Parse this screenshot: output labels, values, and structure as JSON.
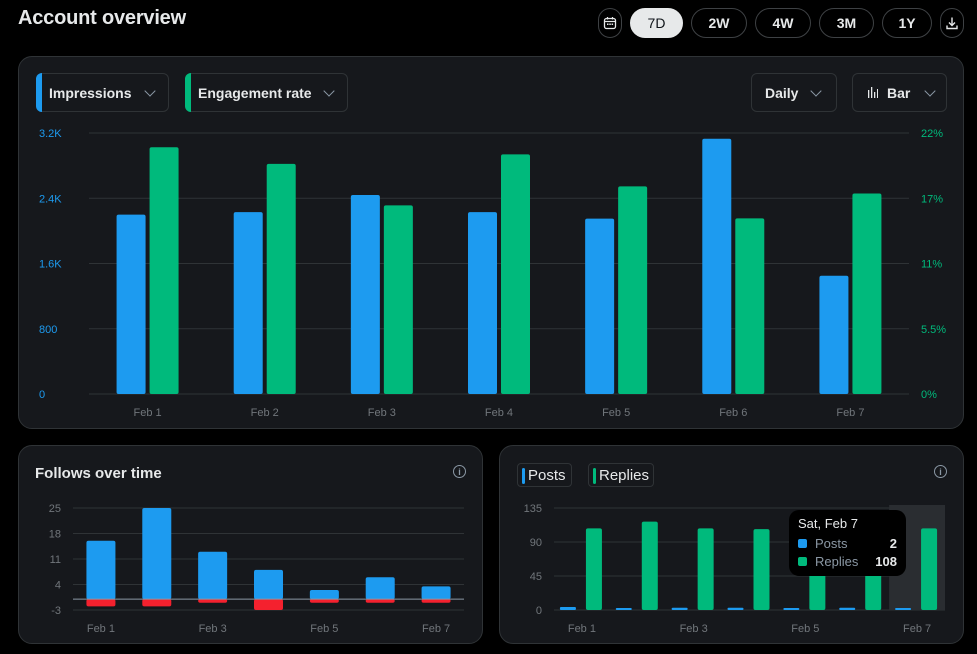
{
  "page": {
    "title": "Account overview"
  },
  "toolbar": {
    "ranges": [
      "7D",
      "2W",
      "4W",
      "3M",
      "1Y"
    ],
    "active_range": "7D"
  },
  "main_chart": {
    "metric_left": "Impressions",
    "metric_right": "Engagement rate",
    "interval": "Daily",
    "chart_type_label": "Bar",
    "colors": {
      "left": "#1d9bf0",
      "right": "#00ba7c"
    }
  },
  "follows_card": {
    "title": "Follows over time"
  },
  "posts_card": {
    "legend": [
      "Posts",
      "Replies"
    ],
    "tooltip": {
      "date": "Sat, Feb 7",
      "rows": [
        {
          "label": "Posts",
          "value": "2"
        },
        {
          "label": "Replies",
          "value": "108"
        }
      ]
    }
  },
  "chart_data": [
    {
      "type": "bar",
      "categories": [
        "Feb 1",
        "Feb 2",
        "Feb 3",
        "Feb 4",
        "Feb 5",
        "Feb 6",
        "Feb 7"
      ],
      "series": [
        {
          "name": "Impressions",
          "axis": "left",
          "values": [
            2200,
            2230,
            2440,
            2230,
            2150,
            3130,
            1450
          ]
        },
        {
          "name": "Engagement rate",
          "axis": "right",
          "values": [
            20.8,
            19.4,
            15.9,
            20.2,
            17.5,
            14.8,
            16.9
          ]
        }
      ],
      "y_left": {
        "ticks": [
          "0",
          "800",
          "1.6K",
          "2.4K",
          "3.2K"
        ],
        "ylim": [
          0,
          3200
        ]
      },
      "y_right": {
        "ticks": [
          "0%",
          "5.5%",
          "11%",
          "17%",
          "22%"
        ],
        "ylim": [
          0,
          22
        ]
      },
      "grid": true
    },
    {
      "type": "bar",
      "categories": [
        "Feb 1",
        "Feb 2",
        "Feb 3",
        "Feb 4",
        "Feb 5",
        "Feb 6",
        "Feb 7"
      ],
      "x_tick_labels": [
        "Feb 1",
        "Feb 3",
        "Feb 5",
        "Feb 7"
      ],
      "series": [
        {
          "name": "Follows",
          "values": [
            16,
            25,
            13,
            8,
            2.5,
            6,
            3.5
          ]
        },
        {
          "name": "Unfollows",
          "values": [
            -2,
            -2,
            -1,
            -3,
            -1,
            -1,
            -1
          ]
        }
      ],
      "y_ticks": [
        "-3",
        "4",
        "11",
        "18",
        "25"
      ],
      "ylim": [
        -3,
        25
      ],
      "grid": true
    },
    {
      "type": "bar",
      "categories": [
        "Feb 1",
        "Feb 2",
        "Feb 3",
        "Feb 4",
        "Feb 5",
        "Feb 6",
        "Feb 7"
      ],
      "x_tick_labels": [
        "Feb 1",
        "Feb 3",
        "Feb 5",
        "Feb 7"
      ],
      "series": [
        {
          "name": "Posts",
          "values": [
            4,
            2,
            3,
            3,
            2,
            3,
            2
          ]
        },
        {
          "name": "Replies",
          "values": [
            108,
            117,
            108,
            107,
            99,
            106,
            108
          ]
        }
      ],
      "y_ticks": [
        "0",
        "45",
        "90",
        "135"
      ],
      "ylim": [
        0,
        135
      ],
      "grid": true,
      "highlighted_category": "Feb 7"
    }
  ]
}
